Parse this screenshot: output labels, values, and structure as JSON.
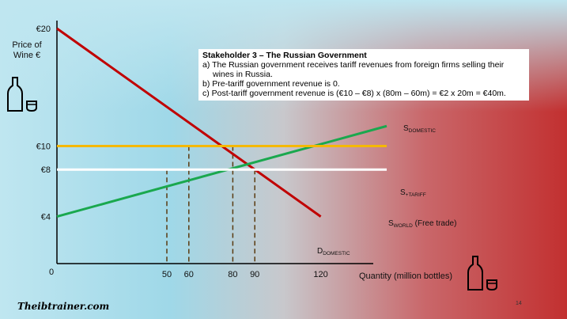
{
  "note": {
    "title": "Stakeholder 3 – The Russian Government",
    "items": [
      "a) The Russian government receives tariff revenues from foreign firms selling their wines in Russia.",
      "b) Pre-tariff government revenue is 0.",
      "c) Post-tariff government revenue is (€10 – €8) x (80m – 60m) = €2 x 20m = €40m."
    ]
  },
  "footer": {
    "logo": "Theibtrainer.com",
    "page_number": "14"
  },
  "icons": [
    "wine-bottle-glass-icon"
  ],
  "colors": {
    "demand": "#c00000",
    "supply_domestic": "#1aa84e",
    "world_tariff": "#f5b800",
    "world": "#ffffff",
    "dashed": "#5a3a10",
    "axis": "#000000"
  },
  "chart_data": {
    "type": "line",
    "ylabel_lines": [
      "Price of",
      "Wine €"
    ],
    "xlabel": "Quantity (million bottles)",
    "xlim": [
      0,
      120
    ],
    "ylim": [
      4,
      20
    ],
    "x_ticks": [
      {
        "value": 50,
        "label": "50"
      },
      {
        "value": 60,
        "label": "60"
      },
      {
        "value": 80,
        "label": "80"
      },
      {
        "value": 90,
        "label": "90"
      },
      {
        "value": 120,
        "label": "120"
      }
    ],
    "origin_label": "0",
    "y_ticks": [
      {
        "value": 20,
        "label": "€20"
      },
      {
        "value": 10,
        "label": "€10"
      },
      {
        "value": 8,
        "label": "€8"
      },
      {
        "value": 4,
        "label": "€4"
      }
    ],
    "series": [
      {
        "key": "demand",
        "label": "D",
        "sub": "DOMESTIC",
        "extra": "",
        "points": [
          [
            0,
            20
          ],
          [
            120,
            4
          ]
        ]
      },
      {
        "key": "supply_domestic",
        "label": "S",
        "sub": "DOMESTIC",
        "extra": "",
        "points": [
          [
            0,
            4
          ],
          [
            150,
            11.7
          ]
        ]
      },
      {
        "key": "world_tariff",
        "label": "S",
        "sub": "+TARIFF",
        "extra": "",
        "points": [
          [
            0,
            10
          ],
          [
            150,
            10
          ]
        ]
      },
      {
        "key": "world",
        "label": "S",
        "sub": "WORLD",
        "extra": " (Free trade)",
        "points": [
          [
            0,
            8
          ],
          [
            150,
            8
          ]
        ]
      }
    ],
    "dashed_guides": [
      {
        "x": 50,
        "y": 8
      },
      {
        "x": 60,
        "y": 10
      },
      {
        "x": 80,
        "y": 10
      },
      {
        "x": 90,
        "y": 8
      }
    ]
  }
}
